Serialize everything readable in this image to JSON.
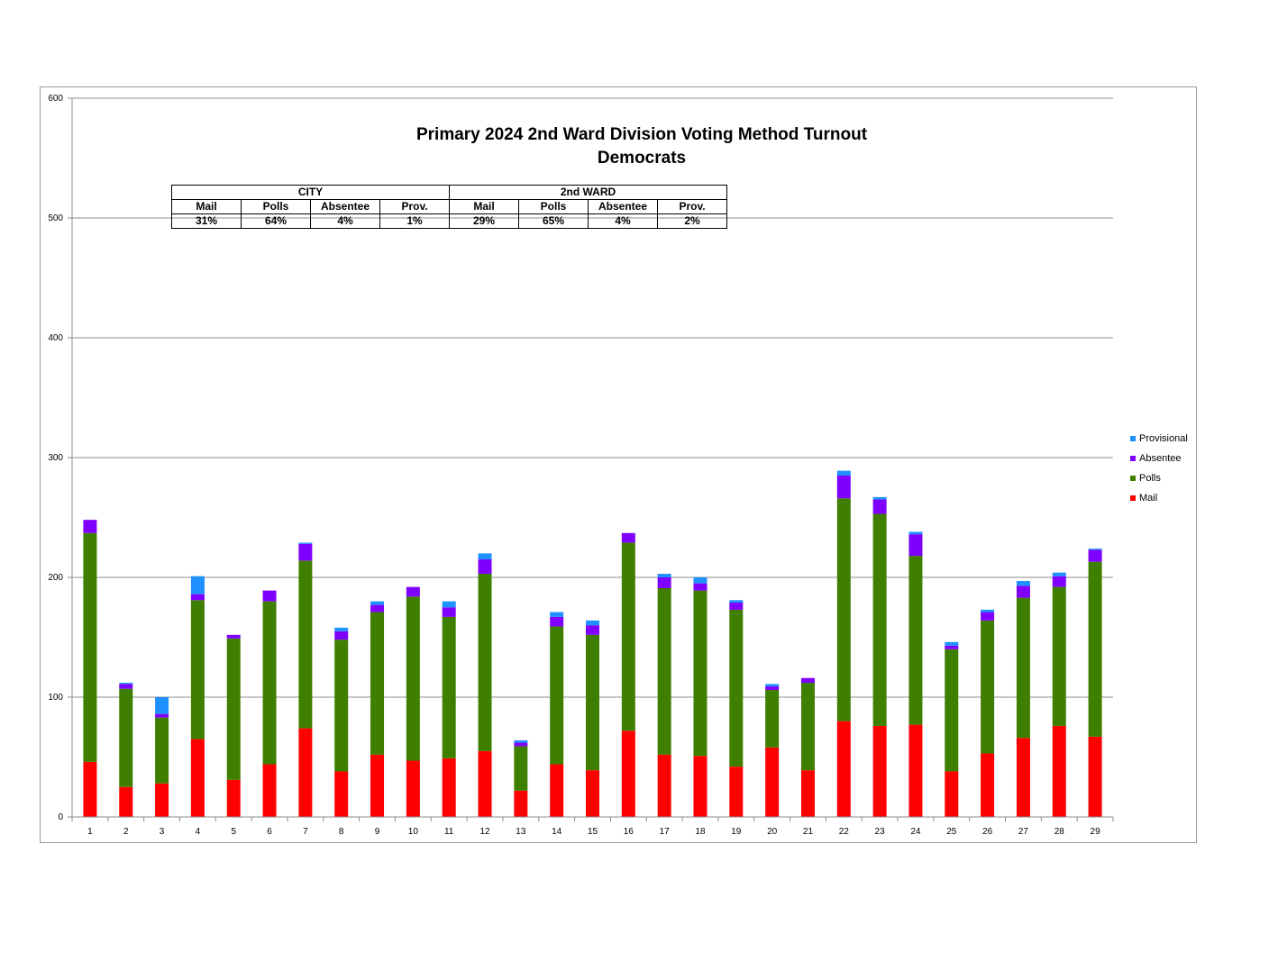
{
  "chart_data": {
    "type": "bar",
    "stacked": true,
    "title": "Primary 2024 2nd Ward Division Voting Method Turnout",
    "subtitle": "Democrats",
    "categories": [
      "1",
      "2",
      "3",
      "4",
      "5",
      "6",
      "7",
      "8",
      "9",
      "10",
      "11",
      "12",
      "13",
      "14",
      "15",
      "16",
      "17",
      "18",
      "19",
      "20",
      "21",
      "22",
      "23",
      "24",
      "25",
      "26",
      "27",
      "28",
      "29"
    ],
    "series": [
      {
        "name": "Mail",
        "color": "#ff0000",
        "values": [
          46,
          25,
          28,
          65,
          31,
          44,
          74,
          38,
          52,
          47,
          49,
          55,
          22,
          44,
          39,
          72,
          52,
          51,
          42,
          58,
          39,
          80,
          76,
          77,
          38,
          53,
          66,
          76,
          67
        ]
      },
      {
        "name": "Polls",
        "color": "#3f7f00",
        "values": [
          191,
          82,
          55,
          116,
          118,
          136,
          140,
          110,
          119,
          137,
          118,
          148,
          37,
          115,
          113,
          157,
          139,
          138,
          131,
          48,
          73,
          186,
          177,
          141,
          102,
          111,
          117,
          116,
          146
        ]
      },
      {
        "name": "Absentee",
        "color": "#8000ff",
        "values": [
          11,
          4,
          3,
          5,
          3,
          9,
          14,
          7,
          6,
          8,
          8,
          12,
          3,
          8,
          8,
          8,
          9,
          6,
          6,
          3,
          4,
          19,
          12,
          18,
          3,
          7,
          10,
          9,
          10
        ]
      },
      {
        "name": "Provisional",
        "color": "#1e90ff",
        "values": [
          0,
          1,
          14,
          15,
          0,
          0,
          1,
          3,
          3,
          0,
          5,
          5,
          2,
          4,
          4,
          0,
          3,
          5,
          2,
          2,
          0,
          4,
          2,
          2,
          3,
          2,
          4,
          3,
          1
        ]
      }
    ],
    "xlabel": "",
    "ylabel": "",
    "ylim": [
      0,
      600
    ],
    "yticks": [
      0,
      100,
      200,
      300,
      400,
      500,
      600
    ],
    "grid": true,
    "legend_position": "right",
    "legend_order": [
      "Provisional",
      "Absentee",
      "Polls",
      "Mail"
    ]
  },
  "summary_table": {
    "groups": [
      "CITY",
      "2nd WARD"
    ],
    "headers": [
      "Mail",
      "Polls",
      "Absentee",
      "Prov.",
      "Mail",
      "Polls",
      "Absentee",
      "Prov."
    ],
    "values": [
      "31%",
      "64%",
      "4%",
      "1%",
      "29%",
      "65%",
      "4%",
      "2%"
    ]
  }
}
